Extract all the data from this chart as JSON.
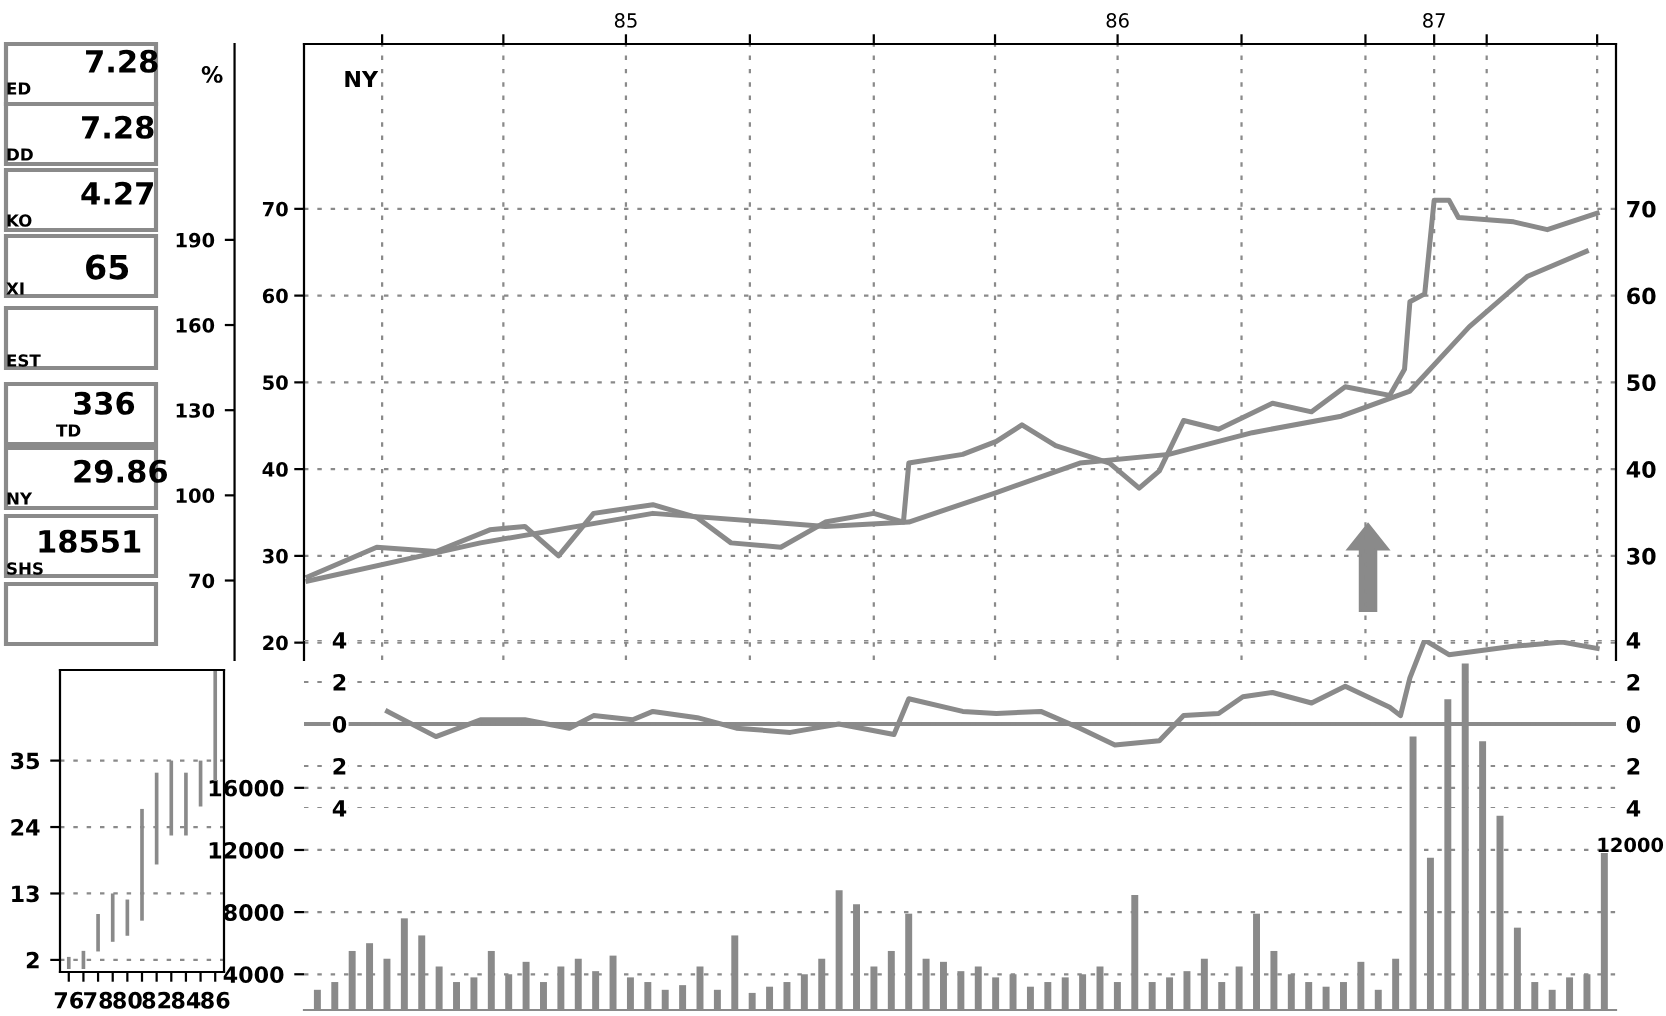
{
  "chart_data": [
    {
      "type": "other",
      "annotations": [
        "7.28",
        "ED",
        "7.28",
        "DD",
        "4.27",
        "KO",
        "65",
        "XI",
        "EST",
        "336",
        "TD",
        "29.86",
        "NY",
        "18551",
        "SHS"
      ]
    },
    {
      "type": "line",
      "annotations": [
        "NY"
      ],
      "grid": true,
      "line_style": "solid",
      "xlim": [
        "1984-11-04",
        "1987-07-06"
      ],
      "xticks": [
        {
          "value": "1985-01-01",
          "label": null
        },
        {
          "value": "1985-04-01",
          "label": null
        },
        {
          "value": "1985-07-01",
          "label": "85"
        },
        {
          "value": "1985-10-01",
          "label": null
        },
        {
          "value": "1986-01-01",
          "label": null
        },
        {
          "value": "1986-04-01",
          "label": null
        },
        {
          "value": "1986-07-01",
          "label": "86"
        },
        {
          "value": "1986-10-01",
          "label": null
        },
        {
          "value": "1987-01-01",
          "label": null
        },
        {
          "value": "1987-02-21",
          "label": "87"
        },
        {
          "value": "1987-04-01",
          "label": null
        },
        {
          "value": "1987-06-22",
          "label": null
        }
      ],
      "ylim": [
        18,
        89
      ],
      "yticks": [
        20,
        30,
        40,
        50,
        60,
        70
      ],
      "y2lim": [
        18,
        89
      ],
      "y2ticks": [
        30,
        40,
        50,
        60,
        70
      ],
      "y3lim": [
        42,
        259
      ],
      "y3ticks": [
        70,
        100,
        130,
        160,
        190
      ],
      "y3label": "%",
      "series": [
        {
          "color": "#8a8a8a",
          "x": [
            "1984-11-07",
            "1984-12-28",
            "1985-02-10",
            "1985-03-22",
            "1985-04-17",
            "1985-05-12",
            "1985-06-07",
            "1985-07-21",
            "1985-08-23",
            "1985-09-17",
            "1985-10-24",
            "1985-11-26",
            "1986-01-01",
            "1986-01-23",
            "1986-01-27",
            "1986-03-08",
            "1986-04-02",
            "1986-04-21",
            "1986-05-16",
            "1986-06-25",
            "1986-07-17",
            "1986-08-01",
            "1986-08-19",
            "1986-09-14",
            "1986-10-24",
            "1986-11-22",
            "1986-12-17",
            "1987-01-19",
            "1987-01-30",
            "1987-02-03",
            "1987-02-14",
            "1987-02-21",
            "1987-03-04",
            "1987-03-11",
            "1987-04-21",
            "1987-05-16",
            "1987-06-22"
          ],
          "values": [
            27.6,
            31,
            30.5,
            33,
            33.4,
            30,
            34.9,
            35.9,
            34.4,
            31.5,
            31,
            33.9,
            34.9,
            33.9,
            40.7,
            41.7,
            43.2,
            45.1,
            42.7,
            40.7,
            37.8,
            39.8,
            45.6,
            44.6,
            47.6,
            46.6,
            49.5,
            48.5,
            51.5,
            59.3,
            60.2,
            71,
            71,
            69,
            68.5,
            67.6,
            69.5
          ]
        },
        {
          "color": "#8a8a8a",
          "x": [
            "1984-11-07",
            "1985-03-15",
            "1985-07-21",
            "1985-11-26",
            "1986-01-27",
            "1986-04-02",
            "1986-06-03",
            "1986-08-08",
            "1986-10-09",
            "1986-12-14",
            "1987-02-03",
            "1987-03-19",
            "1987-05-01",
            "1987-06-14"
          ],
          "values": [
            27.1,
            31.5,
            34.9,
            33.4,
            33.9,
            37.3,
            40.7,
            41.7,
            44.2,
            46.1,
            49,
            56.4,
            62.2,
            65.1
          ]
        }
      ]
    },
    {
      "type": "line",
      "grid": "y",
      "tick_labels": "y",
      "xlim": [
        "1984-11-04",
        "1987-07-06"
      ],
      "ylim": [
        -4,
        4
      ],
      "yticks": [
        {
          "value": -4,
          "label": "4"
        },
        {
          "value": -2,
          "label": "2"
        },
        0,
        2,
        4
      ],
      "y2lim": [
        -4,
        4
      ],
      "y2ticks": [
        {
          "value": -4,
          "label": "4"
        },
        {
          "value": -2,
          "label": "2"
        },
        0,
        2,
        4
      ],
      "ref_lines": [
        {
          "axis": "y",
          "value": 0
        }
      ],
      "series": [
        {
          "color": "#8a8a8a",
          "x": [
            "1985-01-05",
            "1985-02-10",
            "1985-03-15",
            "1985-04-17",
            "1985-05-20",
            "1985-06-07",
            "1985-07-06",
            "1985-07-21",
            "1985-08-23",
            "1985-09-21",
            "1985-10-31",
            "1985-12-06",
            "1986-01-16",
            "1986-01-27",
            "1986-03-08",
            "1986-04-02",
            "1986-05-05",
            "1986-06-03",
            "1986-06-29",
            "1986-08-01",
            "1986-08-19",
            "1986-09-14",
            "1986-10-02",
            "1986-10-24",
            "1986-11-22",
            "1986-12-17",
            "1987-01-19",
            "1987-01-27",
            "1987-02-03",
            "1987-02-14",
            "1987-03-04",
            "1987-04-21",
            "1987-05-27",
            "1987-06-22"
          ],
          "values": [
            0.6,
            -0.6,
            0.2,
            0.2,
            -0.2,
            0.4,
            0.2,
            0.6,
            0.3,
            -0.2,
            -0.4,
            0,
            -0.5,
            1.2,
            0.6,
            0.5,
            0.6,
            -0.2,
            -1.0,
            -0.8,
            0.4,
            0.5,
            1.3,
            1.5,
            1.0,
            1.8,
            0.8,
            0.4,
            2.2,
            4,
            3.3,
            3.7,
            3.9,
            3.6
          ]
        }
      ]
    },
    {
      "type": "bar",
      "grid": "y",
      "tick_labels": "y",
      "annotations": [
        "12000"
      ],
      "color": "#8a8a8a",
      "categories": [
        null,
        null,
        null,
        null,
        null,
        null,
        null,
        null,
        null,
        null,
        null,
        null,
        null,
        null,
        null,
        null,
        null,
        null,
        null,
        null,
        null,
        null,
        null,
        null,
        null,
        null,
        null,
        null,
        null,
        null,
        null,
        null,
        null,
        null,
        null,
        null,
        null,
        null,
        null,
        null,
        null,
        null,
        null,
        null,
        null,
        null,
        null,
        null,
        null,
        null,
        null,
        null,
        null,
        null,
        null,
        null,
        null,
        null,
        null,
        null,
        null,
        null,
        null,
        null,
        null,
        null,
        null,
        null,
        null,
        null,
        null,
        null,
        null,
        null,
        null
      ],
      "ylim": [
        1700,
        25000
      ],
      "yticks": [
        4000,
        8000,
        12000,
        16000
      ],
      "values": [
        3000,
        3500,
        5500,
        6000,
        5000,
        7600,
        6500,
        4500,
        3500,
        3800,
        5500,
        4000,
        4800,
        3500,
        4500,
        5000,
        4200,
        5200,
        3800,
        3500,
        3000,
        3300,
        4500,
        3000,
        6500,
        2800,
        3200,
        3500,
        4000,
        5000,
        9400,
        8500,
        4500,
        5500,
        7900,
        5000,
        4800,
        4200,
        4500,
        3800,
        4000,
        3200,
        3500,
        3800,
        4000,
        4500,
        3500,
        9100,
        3500,
        3800,
        4200,
        5000,
        3500,
        4500,
        7900,
        5500,
        4000,
        3500,
        3200,
        3500,
        4800,
        3000,
        5000,
        19300,
        11500,
        21700,
        24000,
        19000,
        14200,
        7000,
        3500,
        3000,
        3800,
        4000,
        11800
      ]
    },
    {
      "type": "bar",
      "grid": "y",
      "categories": [
        "76",
        null,
        "78",
        null,
        "80",
        null,
        "82",
        null,
        "84",
        null,
        "86"
      ],
      "ylim": [
        0,
        50
      ],
      "yticks": [
        2,
        13,
        24,
        35
      ],
      "color": "#8a8a8a",
      "base": [
        0.5,
        0.5,
        3.4,
        5,
        6,
        8.5,
        17.8,
        22.6,
        22.6,
        27.4,
        31.6
      ],
      "values": [
        2,
        3,
        6.2,
        8,
        6,
        18.5,
        15.2,
        12.4,
        10.4,
        7.6,
        18.4
      ]
    }
  ]
}
